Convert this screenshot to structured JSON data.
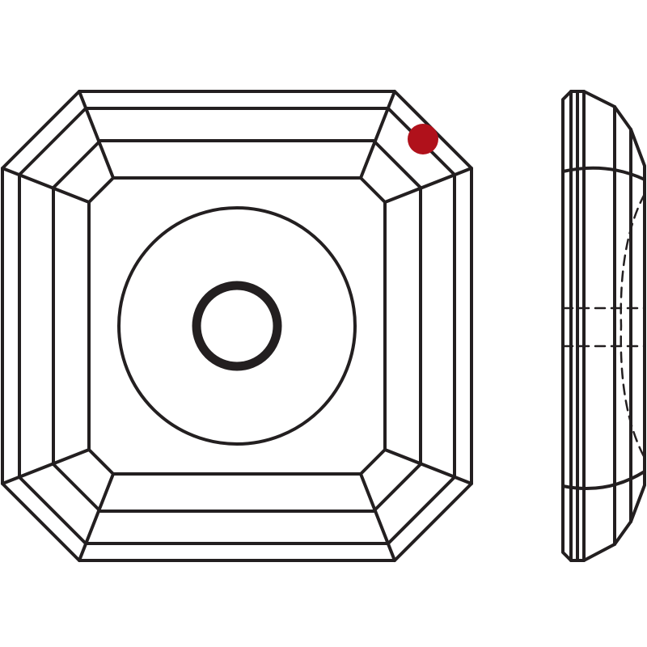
{
  "colors": {
    "background": "#ffffff",
    "line": "#231f20",
    "marker": "#b0111b"
  },
  "views": {
    "front": {
      "shape": "square-octagonal-faceted",
      "center_hole": true
    },
    "side": {
      "profile": "faceted-edge",
      "hidden_hole": "dashed"
    }
  },
  "marker": {
    "color_name": "red-dot"
  }
}
